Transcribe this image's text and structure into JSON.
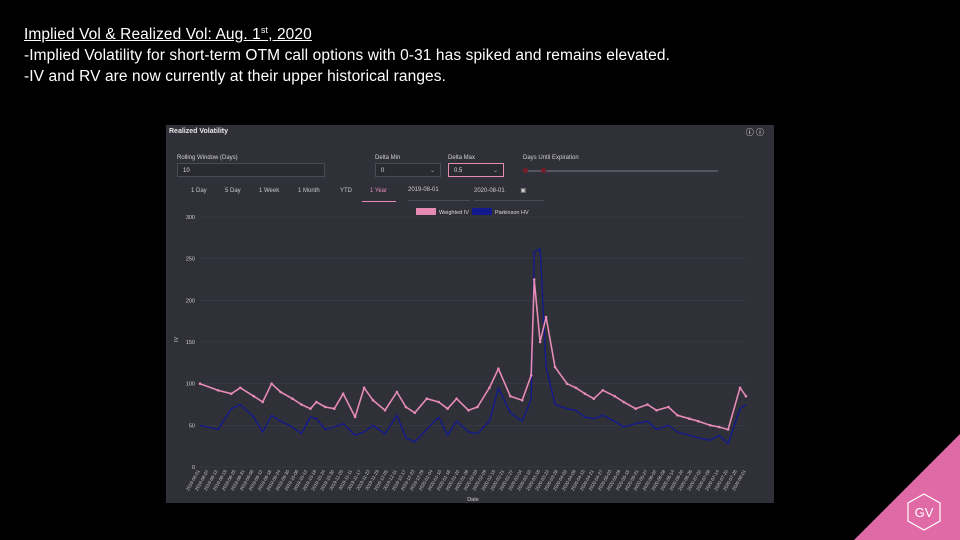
{
  "slide": {
    "title": "Implied Vol & Realized Vol: Aug. 1",
    "title_sup": "st",
    "title_year": ", 2020",
    "line1": "-Implied Volatility for short-term OTM call options with 0-31 has spiked and remains elevated.",
    "line2": "-IV and RV are now currently at their upper historical ranges."
  },
  "panel": {
    "title": "Realized Volatility",
    "info_icon": "info-icon",
    "help_icon": "help-icon",
    "rolling_window_label": "Rolling Window (Days)",
    "rolling_window_value": "10",
    "delta_min_label": "Delta Min",
    "delta_min_value": "0",
    "delta_max_label": "Delta Max",
    "delta_max_value": "0.5",
    "days_until_expiration_label": "Days Until Expiration",
    "tabs": [
      "1 Day",
      "5 Day",
      "1 Week",
      "1 Month",
      "YTD",
      "1 Year"
    ],
    "active_tab": "1 Year",
    "date_from": "2019-08-01",
    "date_to": "2020-08-01",
    "colors": {
      "weighted_iv": "#e58bb4",
      "parkinson_hv": "#121a8c",
      "accent": "#e58bb4"
    }
  },
  "brand": {
    "logo_text": "GV",
    "corner_color": "#e06aa6"
  },
  "chart_data": {
    "type": "line",
    "xlabel": "Date",
    "ylabel": "IV",
    "ylim": [
      0,
      300
    ],
    "yticks": [
      0,
      50,
      100,
      150,
      200,
      250,
      300
    ],
    "grid": true,
    "legend_position": "top-center",
    "x": [
      "2019-08-01",
      "2019-08-13",
      "2019-08-22",
      "2019-08-28",
      "2019-09-06",
      "2019-09-12",
      "2019-09-18",
      "2019-09-24",
      "2019-10-02",
      "2019-10-08",
      "2019-10-14",
      "2019-10-18",
      "2019-10-24",
      "2019-10-30",
      "2019-11-05",
      "2019-11-13",
      "2019-11-19",
      "2019-11-25",
      "2019-12-03",
      "2019-12-11",
      "2019-12-17",
      "2019-12-23",
      "2019-12-31",
      "2020-01-08",
      "2020-01-14",
      "2020-01-20",
      "2020-01-28",
      "2020-02-03",
      "2020-02-11",
      "2020-02-17",
      "2020-02-25",
      "2020-03-04",
      "2020-03-10",
      "2020-03-12",
      "2020-03-16",
      "2020-03-20",
      "2020-03-26",
      "2020-04-03",
      "2020-04-09",
      "2020-04-15",
      "2020-04-21",
      "2020-04-27",
      "2020-05-05",
      "2020-05-11",
      "2020-05-19",
      "2020-05-27",
      "2020-06-02",
      "2020-06-10",
      "2020-06-16",
      "2020-06-24",
      "2020-06-30",
      "2020-07-08",
      "2020-07-14",
      "2020-07-20",
      "2020-07-28",
      "2020-08-01"
    ],
    "x_tick_labels": [
      "2019-08-01",
      "2019-08-07",
      "2019-08-13",
      "2019-08-19",
      "2019-08-25",
      "2019-08-31",
      "2019-09-06",
      "2019-09-12",
      "2019-09-18",
      "2019-09-24",
      "2019-09-30",
      "2019-10-06",
      "2019-10-12",
      "2019-10-18",
      "2019-10-24",
      "2019-10-30",
      "2019-11-05",
      "2019-11-11",
      "2019-11-17",
      "2019-11-23",
      "2019-11-29",
      "2019-12-05",
      "2019-12-11",
      "2019-12-17",
      "2019-12-23",
      "2019-12-29",
      "2020-01-04",
      "2020-01-10",
      "2020-01-16",
      "2020-01-22",
      "2020-01-28",
      "2020-02-03",
      "2020-02-09",
      "2020-02-15",
      "2020-02-21",
      "2020-02-27",
      "2020-03-04",
      "2020-03-10",
      "2020-03-16",
      "2020-03-22",
      "2020-03-28",
      "2020-04-03",
      "2020-04-09",
      "2020-04-15",
      "2020-04-21",
      "2020-04-27",
      "2020-05-03",
      "2020-05-09",
      "2020-05-15",
      "2020-05-21",
      "2020-05-27",
      "2020-06-02",
      "2020-06-08",
      "2020-06-14",
      "2020-06-20",
      "2020-06-26",
      "2020-07-02",
      "2020-07-08",
      "2020-07-14",
      "2020-07-20",
      "2020-07-26",
      "2020-08-01"
    ],
    "series": [
      {
        "name": "Weighted IV",
        "values": [
          100,
          92,
          88,
          95,
          85,
          78,
          100,
          90,
          82,
          75,
          70,
          78,
          72,
          70,
          88,
          60,
          95,
          80,
          68,
          90,
          72,
          65,
          82,
          78,
          70,
          82,
          68,
          72,
          95,
          118,
          85,
          80,
          110,
          225,
          150,
          180,
          120,
          100,
          95,
          88,
          82,
          92,
          85,
          78,
          70,
          75,
          68,
          72,
          62,
          58,
          55,
          50,
          48,
          45,
          95,
          85
        ]
      },
      {
        "name": "Parkinson HV",
        "values": [
          50,
          45,
          70,
          75,
          60,
          42,
          62,
          55,
          48,
          40,
          60,
          58,
          45,
          48,
          52,
          38,
          42,
          50,
          40,
          62,
          35,
          30,
          45,
          60,
          38,
          55,
          42,
          40,
          55,
          95,
          65,
          55,
          82,
          258,
          262,
          120,
          75,
          70,
          68,
          60,
          58,
          62,
          55,
          48,
          52,
          55,
          45,
          50,
          42,
          38,
          35,
          32,
          38,
          28,
          70,
          75
        ]
      }
    ]
  }
}
